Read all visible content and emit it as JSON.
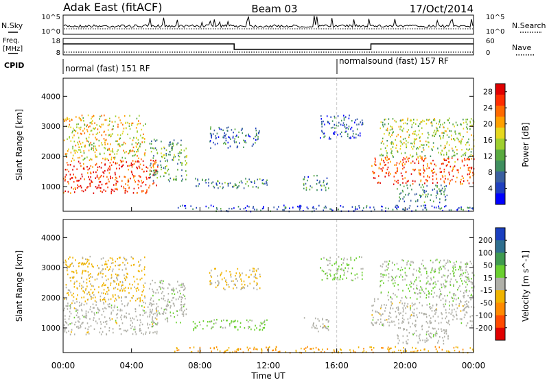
{
  "header": {
    "radar": "Adak East (fitACF)",
    "beam": "Beam 03",
    "date": "17/Oct/2014"
  },
  "top_panels": {
    "nsky_label": "N.Sky",
    "nsearch_label": "N.Search",
    "noise_ticks_left": [
      "10^5",
      "10^0"
    ],
    "noise_ticks_right": [
      "10^5",
      "10^0"
    ],
    "freq_label": "Freq.",
    "freq_unit": "[MHz]",
    "freq_ticks": [
      "18",
      "8"
    ],
    "nave_label": "Nave",
    "nave_ticks": [
      "60",
      "0"
    ],
    "cpid_label": "CPID",
    "cpid_segments": [
      {
        "label": "normal (fast) 151 RF",
        "start": "00:00",
        "end": "16:00"
      },
      {
        "label": "normalsound (fast) 157 RF",
        "start": "16:00",
        "end": "00:00"
      }
    ],
    "freq_steps": [
      {
        "start_h": 0,
        "end_h": 10,
        "level": "high"
      },
      {
        "start_h": 10,
        "end_h": 18,
        "level": "low"
      },
      {
        "start_h": 18,
        "end_h": 24,
        "level": "high"
      }
    ]
  },
  "colors": {
    "power": [
      "#0000ff",
      "#1f3fbf",
      "#3a5fa0",
      "#3f8f5f",
      "#59aa3f",
      "#9fcf2f",
      "#e6d81f",
      "#ffa000",
      "#ff6a00",
      "#ff2d00",
      "#e00000"
    ],
    "velocity": [
      "#1a3fbf",
      "#2f6f8f",
      "#3f9a4f",
      "#6acf2f",
      "#b0b0a8",
      "#f0b400",
      "#ff8a00",
      "#ff4a00",
      "#e00000"
    ]
  },
  "chart_data": [
    {
      "type": "heatmap",
      "title": "Power",
      "ylabel": "Slant Range [km]",
      "xlabel": "Time UT",
      "y_ticks": [
        "1000",
        "2000",
        "3000",
        "4000"
      ],
      "ylim": [
        180,
        4600
      ],
      "x_ticks": [
        "00:00",
        "04:00",
        "08:00",
        "12:00",
        "16:00",
        "20:00",
        "00:00"
      ],
      "xlim_hours": [
        0,
        24
      ],
      "colorbar": {
        "label": "Power [dB]",
        "ticks": [
          "4",
          "8",
          "12",
          "16",
          "20",
          "24",
          "28"
        ],
        "range": [
          0,
          30
        ]
      },
      "regions": [
        {
          "t0": 0.0,
          "t1": 5.5,
          "r0": 800,
          "r1": 1900,
          "value": 26
        },
        {
          "t0": 0.0,
          "t1": 4.8,
          "r0": 1900,
          "r1": 3400,
          "value": 18
        },
        {
          "t0": 5.0,
          "t1": 7.2,
          "r0": 1200,
          "r1": 2600,
          "value": 12
        },
        {
          "t0": 7.5,
          "t1": 12.0,
          "r0": 950,
          "r1": 1300,
          "value": 9
        },
        {
          "t0": 8.5,
          "t1": 11.5,
          "r0": 2300,
          "r1": 3000,
          "value": 7
        },
        {
          "t0": 14.0,
          "t1": 15.5,
          "r0": 900,
          "r1": 1400,
          "value": 8
        },
        {
          "t0": 15.0,
          "t1": 17.5,
          "r0": 2600,
          "r1": 3400,
          "value": 6
        },
        {
          "t0": 18.0,
          "t1": 24.0,
          "r0": 1100,
          "r1": 2000,
          "value": 25
        },
        {
          "t0": 18.5,
          "t1": 24.0,
          "r0": 2000,
          "r1": 3300,
          "value": 15
        },
        {
          "t0": 19.5,
          "t1": 22.5,
          "r0": 500,
          "r1": 1100,
          "value": 10
        },
        {
          "t0": 6.5,
          "t1": 24.0,
          "r0": 200,
          "r1": 400,
          "value": 6
        }
      ]
    },
    {
      "type": "heatmap",
      "title": "Velocity",
      "ylabel": "Slant Range [km]",
      "xlabel": "Time UT",
      "y_ticks": [
        "1000",
        "2000",
        "3000",
        "4000"
      ],
      "ylim": [
        180,
        4600
      ],
      "x_ticks": [
        "00:00",
        "04:00",
        "08:00",
        "12:00",
        "16:00",
        "20:00",
        "00:00"
      ],
      "xlim_hours": [
        0,
        24
      ],
      "colorbar": {
        "label": "Velocity [m s^-1]",
        "ticks": [
          "200",
          "100",
          "50",
          "15",
          "-15",
          "-50",
          "-100",
          "-200"
        ],
        "range": [
          -250,
          250
        ]
      },
      "regions": [
        {
          "t0": 0.0,
          "t1": 5.5,
          "r0": 800,
          "r1": 1900,
          "value": 0
        },
        {
          "t0": 0.0,
          "t1": 4.8,
          "r0": 1900,
          "r1": 3400,
          "value": -40
        },
        {
          "t0": 5.0,
          "t1": 7.2,
          "r0": 1200,
          "r1": 2600,
          "value": 10
        },
        {
          "t0": 7.5,
          "t1": 12.0,
          "r0": 950,
          "r1": 1300,
          "value": 40
        },
        {
          "t0": 8.5,
          "t1": 11.5,
          "r0": 2300,
          "r1": 3000,
          "value": -30
        },
        {
          "t0": 14.0,
          "t1": 15.5,
          "r0": 900,
          "r1": 1400,
          "value": 0
        },
        {
          "t0": 15.0,
          "t1": 17.5,
          "r0": 2600,
          "r1": 3400,
          "value": 30
        },
        {
          "t0": 18.0,
          "t1": 24.0,
          "r0": 1100,
          "r1": 2000,
          "value": 0
        },
        {
          "t0": 18.5,
          "t1": 24.0,
          "r0": 2000,
          "r1": 3300,
          "value": 20
        },
        {
          "t0": 19.5,
          "t1": 22.5,
          "r0": 500,
          "r1": 1100,
          "value": 5
        },
        {
          "t0": 6.5,
          "t1": 24.0,
          "r0": 200,
          "r1": 400,
          "value": -80
        }
      ]
    }
  ]
}
